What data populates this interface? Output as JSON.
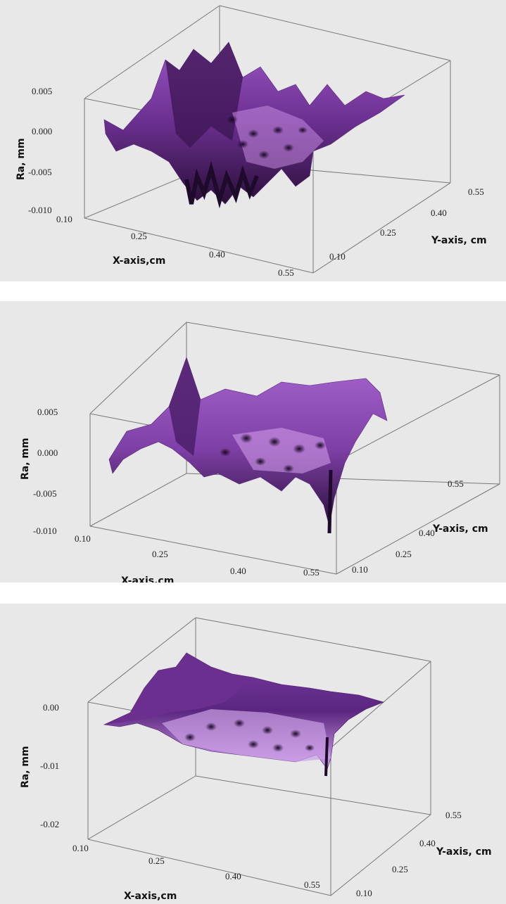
{
  "colors": {
    "background": "#e8e8e8",
    "surface_dark": "#2a0f38",
    "surface_mid": "#7d3fa5",
    "surface_light": "#d7a3ee",
    "box_line": "#777777"
  },
  "chart_data": [
    {
      "type": "surface3d",
      "xlabel": "X-axis,cm",
      "ylabel": "Y-axis, cm",
      "zlabel": "Ra, mm",
      "x_ticks": [
        "0.10",
        "0.25",
        "0.40",
        "0.55"
      ],
      "y_ticks": [
        "0.10",
        "0.25",
        "0.40",
        "0.55"
      ],
      "z_ticks": [
        "0.005",
        "0.000",
        "-0.005",
        "-0.010"
      ],
      "x_range": [
        0.1,
        0.55
      ],
      "y_range": [
        0.1,
        0.55
      ],
      "z_range": [
        -0.01,
        0.005
      ],
      "grid": false
    },
    {
      "type": "surface3d",
      "xlabel": "X-axis,cm",
      "ylabel": "Y-axis, cm",
      "zlabel": "Ra, mm",
      "x_ticks": [
        "0.10",
        "0.25",
        "0.40",
        "0.55"
      ],
      "y_ticks": [
        "0.10",
        "0.25",
        "0.40",
        "0.55"
      ],
      "z_ticks": [
        "0.005",
        "0.000",
        "-0.005",
        "-0.010"
      ],
      "x_range": [
        0.1,
        0.55
      ],
      "y_range": [
        0.1,
        0.55
      ],
      "z_range": [
        -0.01,
        0.005
      ],
      "grid": false
    },
    {
      "type": "surface3d",
      "xlabel": "X-axis,cm",
      "ylabel": "Y-axis, cm",
      "zlabel": "Ra, mm",
      "x_ticks": [
        "0.10",
        "0.25",
        "0.40",
        "0.55"
      ],
      "y_ticks": [
        "0.10",
        "0.25",
        "0.40",
        "0.55"
      ],
      "z_ticks": [
        "0.00",
        "-0.01",
        "-0.02"
      ],
      "x_range": [
        0.1,
        0.55
      ],
      "y_range": [
        0.1,
        0.55
      ],
      "z_range": [
        -0.02,
        0.0
      ],
      "grid": false
    }
  ]
}
